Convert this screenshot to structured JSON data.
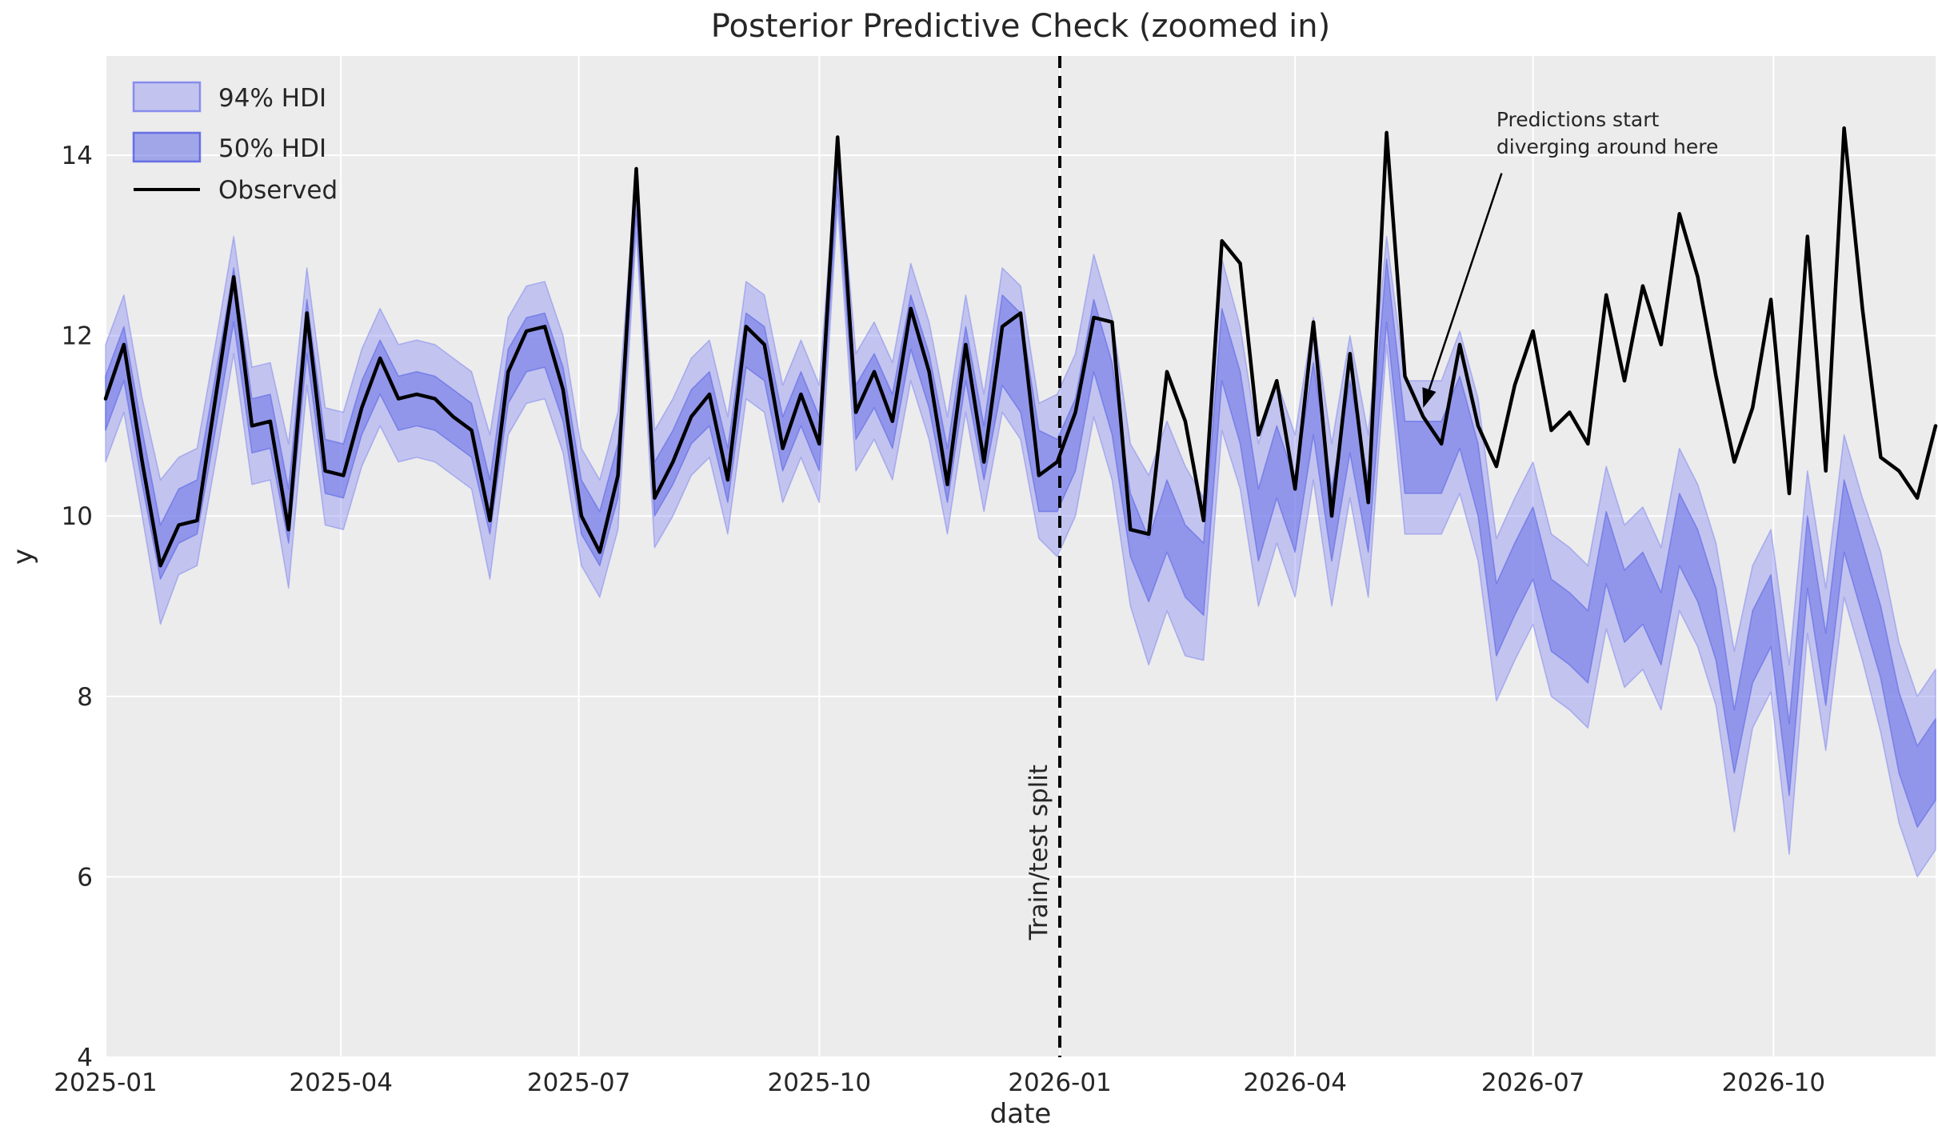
{
  "chart_data": {
    "type": "line",
    "title": "Posterior Predictive Check (zoomed in)",
    "xlabel": "date",
    "ylabel": "y",
    "legend": {
      "hdi94_label": "94% HDI",
      "hdi50_label": "50% HDI",
      "observed_label": "Observed",
      "position": "upper left"
    },
    "x": {
      "start": "2025-01-01",
      "step_days": 7,
      "n_points": 101,
      "end": "2026-12-02"
    },
    "axis": {
      "ylim": [
        4,
        15.1
      ],
      "yticks": [
        4,
        6,
        8,
        10,
        12,
        14
      ],
      "xticks": [
        {
          "label": "2025-01",
          "date": "2025-01-01"
        },
        {
          "label": "2025-04",
          "date": "2025-04-01"
        },
        {
          "label": "2025-07",
          "date": "2025-07-01"
        },
        {
          "label": "2025-10",
          "date": "2025-10-01"
        },
        {
          "label": "2026-01",
          "date": "2026-01-01"
        },
        {
          "label": "2026-04",
          "date": "2026-04-01"
        },
        {
          "label": "2026-07",
          "date": "2026-07-01"
        },
        {
          "label": "2026-10",
          "date": "2026-10-01"
        }
      ],
      "grid": true
    },
    "observed": [
      11.3,
      11.9,
      10.6,
      9.45,
      9.9,
      9.95,
      11.3,
      12.65,
      11.0,
      11.05,
      9.85,
      12.25,
      10.5,
      10.45,
      11.2,
      11.75,
      11.3,
      11.35,
      11.3,
      11.1,
      10.95,
      9.95,
      11.6,
      12.05,
      12.1,
      11.4,
      10.0,
      9.6,
      10.45,
      13.85,
      10.2,
      10.6,
      11.1,
      11.35,
      10.4,
      12.1,
      11.9,
      10.75,
      11.35,
      10.8,
      14.2,
      11.15,
      11.6,
      11.05,
      12.3,
      11.6,
      10.35,
      11.9,
      10.6,
      12.1,
      12.25,
      10.45,
      10.6,
      11.15,
      12.2,
      12.15,
      9.85,
      9.8,
      11.6,
      11.05,
      9.95,
      13.05,
      12.8,
      10.9,
      11.5,
      10.3,
      12.15,
      10.0,
      11.8,
      10.15,
      14.25,
      11.55,
      11.1,
      10.8,
      11.9,
      11.0,
      10.55,
      11.45,
      12.05,
      10.95,
      11.15,
      10.8,
      12.45,
      11.5,
      12.55,
      11.9,
      13.35,
      12.65,
      11.55,
      10.6,
      11.2,
      12.4,
      10.25,
      13.1,
      10.5,
      14.3,
      12.3,
      10.65,
      10.5,
      10.2,
      11.0
    ],
    "hdi50": {
      "lower": [
        10.95,
        11.5,
        10.35,
        9.3,
        9.7,
        9.8,
        10.95,
        12.15,
        10.7,
        10.75,
        9.7,
        11.8,
        10.25,
        10.2,
        10.9,
        11.35,
        10.95,
        11.0,
        10.95,
        10.8,
        10.65,
        9.8,
        11.25,
        11.6,
        11.65,
        11.05,
        9.8,
        9.45,
        10.2,
        13.35,
        10.0,
        10.35,
        10.8,
        11.0,
        10.15,
        11.65,
        11.5,
        10.5,
        11.0,
        10.5,
        13.65,
        10.85,
        11.2,
        10.75,
        11.85,
        11.2,
        10.15,
        11.5,
        10.4,
        11.45,
        11.15,
        10.05,
        10.05,
        10.5,
        11.6,
        10.9,
        9.55,
        9.05,
        9.6,
        9.1,
        8.9,
        11.5,
        10.8,
        9.5,
        10.2,
        9.6,
        10.9,
        9.5,
        10.7,
        9.6,
        12.15,
        10.25,
        10.25,
        10.25,
        10.75,
        10.0,
        8.45,
        8.9,
        9.3,
        8.5,
        8.35,
        8.15,
        9.25,
        8.6,
        8.8,
        8.35,
        9.45,
        9.05,
        8.4,
        7.15,
        8.15,
        8.55,
        6.9,
        9.2,
        7.9,
        9.6,
        8.9,
        8.2,
        7.15,
        6.55,
        6.85
      ],
      "upper": [
        11.55,
        12.1,
        10.95,
        9.9,
        10.3,
        10.4,
        11.55,
        12.75,
        11.3,
        11.35,
        10.3,
        12.4,
        10.85,
        10.8,
        11.5,
        11.95,
        11.55,
        11.6,
        11.55,
        11.4,
        11.25,
        10.4,
        11.85,
        12.2,
        12.25,
        11.65,
        10.4,
        10.05,
        10.8,
        13.65,
        10.6,
        10.95,
        11.4,
        11.6,
        10.75,
        12.25,
        12.1,
        11.1,
        11.6,
        11.1,
        13.95,
        11.45,
        11.8,
        11.35,
        12.45,
        11.8,
        10.75,
        12.1,
        11.0,
        12.45,
        12.25,
        10.95,
        10.85,
        11.3,
        12.4,
        11.7,
        10.25,
        9.75,
        10.4,
        9.9,
        9.7,
        12.3,
        11.6,
        10.3,
        11.0,
        10.4,
        11.7,
        10.3,
        11.5,
        10.4,
        12.85,
        11.05,
        11.05,
        11.05,
        11.55,
        10.8,
        9.25,
        9.7,
        10.1,
        9.3,
        9.15,
        8.95,
        10.05,
        9.4,
        9.6,
        9.15,
        10.25,
        9.85,
        9.2,
        7.85,
        8.95,
        9.35,
        7.7,
        10.0,
        8.7,
        10.4,
        9.7,
        9.0,
        8.05,
        7.45,
        7.75
      ]
    },
    "hdi94": {
      "lower": [
        10.6,
        11.15,
        10.0,
        8.8,
        9.35,
        9.45,
        10.6,
        11.8,
        10.35,
        10.4,
        9.2,
        11.45,
        9.9,
        9.85,
        10.55,
        11.0,
        10.6,
        10.65,
        10.6,
        10.45,
        10.3,
        9.3,
        10.9,
        11.25,
        11.3,
        10.7,
        9.45,
        9.1,
        9.85,
        13.15,
        9.65,
        10.0,
        10.45,
        10.65,
        9.8,
        11.3,
        11.15,
        10.15,
        10.65,
        10.15,
        13.45,
        10.5,
        10.85,
        10.4,
        11.5,
        10.85,
        9.8,
        11.15,
        10.05,
        11.15,
        10.85,
        9.75,
        9.55,
        10.0,
        11.1,
        10.4,
        9.0,
        8.35,
        8.95,
        8.45,
        8.4,
        10.95,
        10.3,
        9.0,
        9.7,
        9.1,
        10.4,
        9.0,
        10.2,
        9.1,
        11.9,
        9.8,
        9.8,
        9.8,
        10.25,
        9.5,
        7.95,
        8.4,
        8.8,
        8.0,
        7.85,
        7.65,
        8.75,
        8.1,
        8.3,
        7.85,
        8.95,
        8.55,
        7.9,
        6.5,
        7.65,
        8.05,
        6.25,
        8.7,
        7.4,
        9.1,
        8.4,
        7.6,
        6.6,
        6.0,
        6.3
      ],
      "upper": [
        11.9,
        12.45,
        11.3,
        10.4,
        10.65,
        10.75,
        11.9,
        13.1,
        11.65,
        11.7,
        10.8,
        12.75,
        11.2,
        11.15,
        11.85,
        12.3,
        11.9,
        11.95,
        11.9,
        11.75,
        11.6,
        10.9,
        12.2,
        12.55,
        12.6,
        12.0,
        10.75,
        10.4,
        11.15,
        13.85,
        10.95,
        11.3,
        11.75,
        11.95,
        11.1,
        12.6,
        12.45,
        11.45,
        11.95,
        11.45,
        14.15,
        11.8,
        12.15,
        11.7,
        12.8,
        12.15,
        11.1,
        12.45,
        11.35,
        12.75,
        12.55,
        11.25,
        11.35,
        11.8,
        12.9,
        12.2,
        10.8,
        10.45,
        11.05,
        10.55,
        10.2,
        12.85,
        12.1,
        10.8,
        11.5,
        10.9,
        12.2,
        10.8,
        12.0,
        10.9,
        13.1,
        11.5,
        11.5,
        11.5,
        12.05,
        11.3,
        9.75,
        10.2,
        10.6,
        9.8,
        9.65,
        9.45,
        10.55,
        9.9,
        10.1,
        9.65,
        10.75,
        10.35,
        9.7,
        8.5,
        9.45,
        9.85,
        8.35,
        10.5,
        9.2,
        10.9,
        10.2,
        9.6,
        8.6,
        8.0,
        8.3
      ]
    },
    "split": {
      "label": "Train/test split",
      "date": "2026-01-01",
      "label_y": 5.3
    },
    "annotation": {
      "lines": [
        "Predictions start",
        "diverging around here"
      ],
      "text_at": {
        "date": "2026-06-17",
        "y": 14.32
      },
      "arrow_from": {
        "date": "2026-06-19",
        "y": 13.8
      },
      "arrow_to": {
        "date": "2026-05-20",
        "y": 11.2
      }
    },
    "colors": {
      "figure_background": "#ffffff",
      "plot_background": "#ececec",
      "grid": "#ffffff",
      "observed": "#000000",
      "hdi94_fill": "rgba(132,138,245,0.40)",
      "hdi94_edge": "rgba(116,123,235,0.45)",
      "hdi50_fill": "rgba(112,120,231,0.60)",
      "hdi50_edge": "rgba(80,90,225,0.50)",
      "split_line": "#000000",
      "text": "#262626"
    }
  }
}
